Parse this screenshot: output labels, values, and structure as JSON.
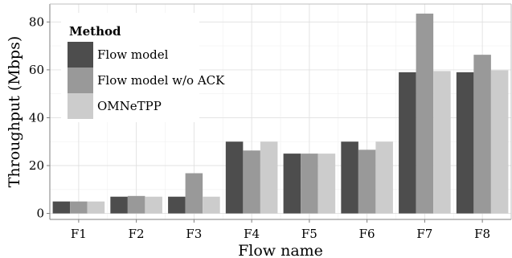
{
  "chart_data": {
    "type": "bar",
    "categories": [
      "F1",
      "F2",
      "F3",
      "F4",
      "F5",
      "F6",
      "F7",
      "F8"
    ],
    "series": [
      {
        "name": "Flow model",
        "values": [
          5,
          7,
          7,
          30,
          25,
          30,
          59,
          59
        ],
        "color": "#4d4d4d"
      },
      {
        "name": "Flow model w/o ACK",
        "values": [
          5,
          7.3,
          16.8,
          26.3,
          25,
          26.6,
          83.5,
          66.3
        ],
        "color": "#999999"
      },
      {
        "name": "OMNeTPP",
        "values": [
          5,
          7,
          7,
          30,
          25,
          30,
          59.5,
          59.8
        ],
        "color": "#cccccc"
      }
    ],
    "xlabel": "Flow name",
    "ylabel": "Throughput (Mbps)",
    "ylim": [
      -2.5,
      87.5
    ],
    "yticks": [
      0,
      20,
      40,
      60,
      80
    ],
    "grid": true,
    "legend": {
      "title": "Method",
      "position": "top-left"
    }
  }
}
